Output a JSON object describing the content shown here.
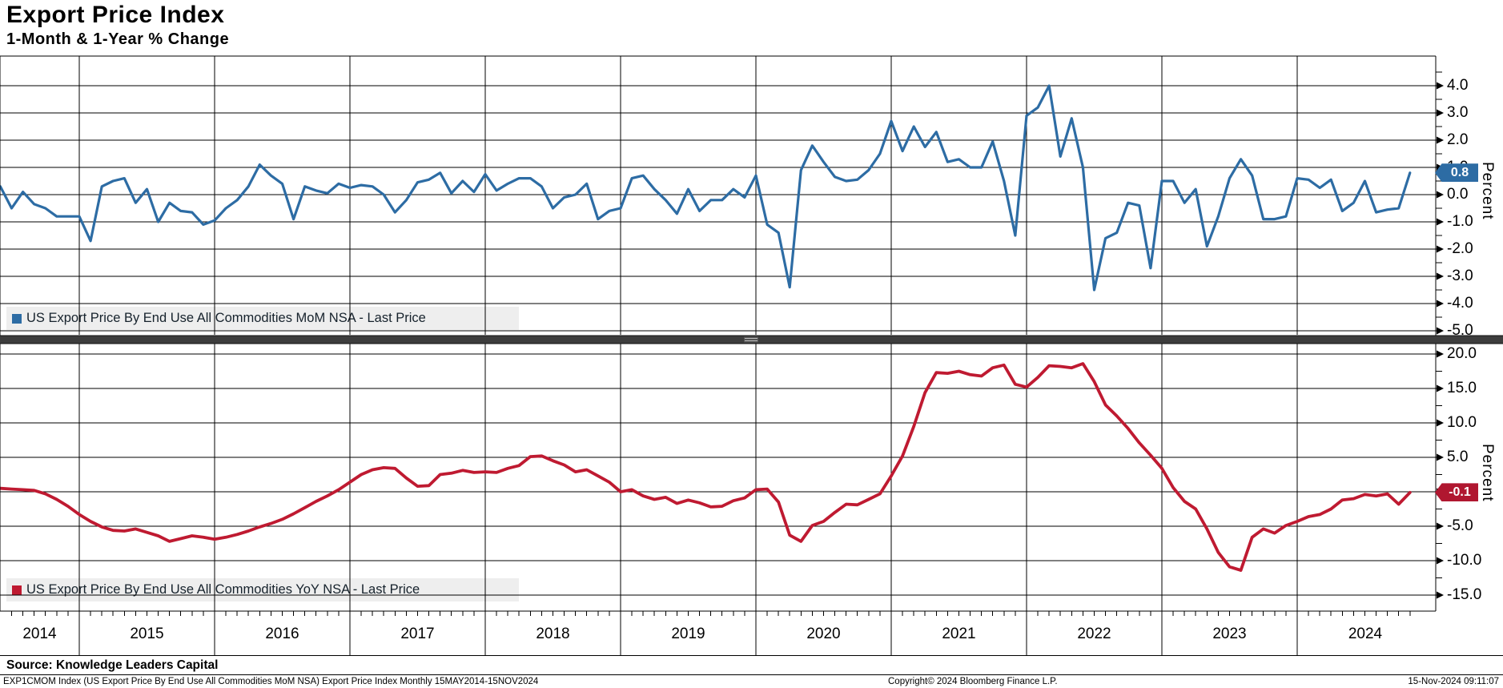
{
  "header": {
    "title": "Export Price Index",
    "subtitle": "1-Month & 1-Year % Change"
  },
  "panels": [
    {
      "id": "mom",
      "legend_label": "US Export Price By End Use All Commodities MoM NSA - Last Price",
      "line_color": "#2d6ca4",
      "badge_value": "0.8",
      "badge_color": "#2d6ca4",
      "axis_labels": [
        "4.0",
        "3.0",
        "2.0",
        "1.0",
        "0.0",
        "-1.0",
        "-2.0",
        "-3.0",
        "-4.0",
        "-5.0"
      ],
      "axis_title": "Percent"
    },
    {
      "id": "yoy",
      "legend_label": "US Export Price By End Use All Commodities YoY NSA - Last Price",
      "line_color": "#bf1a31",
      "badge_value": "-0.1",
      "badge_color": "#b01730",
      "axis_labels": [
        "20.0",
        "15.0",
        "10.0",
        "5.0",
        "0.0",
        "-5.0",
        "-10.0",
        "-15.0"
      ],
      "axis_title": "Percent"
    }
  ],
  "x_axis": {
    "year_labels": [
      "2014",
      "2015",
      "2016",
      "2017",
      "2018",
      "2019",
      "2020",
      "2021",
      "2022",
      "2023",
      "2024"
    ]
  },
  "footer": {
    "source": "Source: Knowledge Leaders Capital",
    "description": "EXP1CMOM Index (US Export Price By End Use All Commodities MoM NSA) Export Price Index  Monthly 15MAY2014-15NOV2024",
    "copyright": "Copyright© 2024 Bloomberg Finance L.P.",
    "timestamp": "15-Nov-2024 09:11:07"
  },
  "chart_data": [
    {
      "type": "line",
      "name": "US Export Price By End Use All Commodities MoM NSA - Last Price",
      "x_start": "2014-05",
      "x_end": "2024-11",
      "x_freq": "monthly",
      "ylabel": "Percent",
      "ylim": [
        -5.1,
        5.1
      ],
      "y_ticks": [
        4.0,
        3.0,
        2.0,
        1.0,
        0.0,
        -1.0,
        -2.0,
        -3.0,
        -4.0,
        -5.0
      ],
      "grid": true,
      "last_price": 0.8,
      "color": "#2d6ca4",
      "values": [
        0.2,
        0.3,
        -0.5,
        0.1,
        -0.35,
        -0.5,
        -0.8,
        -0.8,
        -0.8,
        -1.7,
        0.3,
        0.5,
        0.6,
        -0.3,
        0.2,
        -1.0,
        -0.3,
        -0.6,
        -0.65,
        -1.1,
        -0.95,
        -0.5,
        -0.2,
        0.3,
        1.1,
        0.7,
        0.4,
        -0.9,
        0.3,
        0.15,
        0.05,
        0.4,
        0.25,
        0.35,
        0.3,
        0.0,
        -0.65,
        -0.2,
        0.45,
        0.55,
        0.8,
        0.05,
        0.5,
        0.1,
        0.75,
        0.15,
        0.4,
        0.6,
        0.6,
        0.3,
        -0.5,
        -0.1,
        0.0,
        0.4,
        -0.9,
        -0.6,
        -0.5,
        0.6,
        0.7,
        0.2,
        -0.2,
        -0.7,
        0.2,
        -0.6,
        -0.2,
        -0.2,
        0.2,
        -0.1,
        0.7,
        -1.1,
        -1.4,
        -3.4,
        0.9,
        1.8,
        1.2,
        0.65,
        0.5,
        0.55,
        0.9,
        1.5,
        2.7,
        1.6,
        2.5,
        1.75,
        2.3,
        1.2,
        1.3,
        1.0,
        1.0,
        1.95,
        0.5,
        -1.5,
        2.9,
        3.2,
        4.0,
        1.4,
        2.8,
        1.0,
        -3.5,
        -1.6,
        -1.4,
        -0.3,
        -0.4,
        -2.7,
        0.5,
        0.5,
        -0.3,
        0.2,
        -1.9,
        -0.8,
        0.6,
        1.3,
        0.7,
        -0.9,
        -0.9,
        -0.8,
        0.6,
        0.55,
        0.25,
        0.55,
        -0.6,
        -0.3,
        0.5,
        -0.65,
        -0.55,
        -0.5,
        0.8
      ]
    },
    {
      "type": "line",
      "name": "US Export Price By End Use All Commodities YoY NSA - Last Price",
      "x_start": "2014-05",
      "x_end": "2024-11",
      "x_freq": "monthly",
      "ylabel": "Percent",
      "ylim": [
        -17.4,
        21.5
      ],
      "y_ticks": [
        20.0,
        15.0,
        10.0,
        5.0,
        0.0,
        -5.0,
        -10.0,
        -15.0
      ],
      "grid": true,
      "last_price": -0.1,
      "color": "#bf1a31",
      "values": [
        0.4,
        0.5,
        0.4,
        0.3,
        0.2,
        -0.3,
        -1.1,
        -2.1,
        -3.3,
        -4.3,
        -5.1,
        -5.6,
        -5.7,
        -5.4,
        -5.9,
        -6.4,
        -7.2,
        -6.8,
        -6.4,
        -6.6,
        -6.9,
        -6.6,
        -6.2,
        -5.7,
        -5.1,
        -4.6,
        -4.0,
        -3.2,
        -2.3,
        -1.4,
        -0.6,
        0.3,
        1.4,
        2.5,
        3.2,
        3.5,
        3.4,
        2.0,
        0.8,
        0.9,
        2.5,
        2.7,
        3.1,
        2.8,
        2.9,
        2.8,
        3.4,
        3.8,
        5.1,
        5.2,
        4.5,
        3.9,
        2.9,
        3.2,
        2.3,
        1.4,
        0.0,
        0.3,
        -0.6,
        -1.1,
        -0.8,
        -1.7,
        -1.2,
        -1.6,
        -2.2,
        -2.1,
        -1.3,
        -0.9,
        0.3,
        0.4,
        -1.5,
        -6.3,
        -7.2,
        -4.9,
        -4.3,
        -3.0,
        -1.8,
        -1.9,
        -1.1,
        -0.3,
        2.3,
        5.2,
        9.5,
        14.4,
        17.3,
        17.2,
        17.5,
        17.0,
        16.8,
        18.0,
        18.4,
        15.6,
        15.2,
        16.6,
        18.3,
        18.2,
        18.0,
        18.6,
        16.0,
        12.6,
        11.0,
        9.2,
        7.1,
        5.3,
        3.4,
        0.6,
        -1.4,
        -2.5,
        -5.4,
        -8.8,
        -10.9,
        -11.4,
        -6.6,
        -5.4,
        -6.0,
        -4.9,
        -4.3,
        -3.6,
        -3.3,
        -2.5,
        -1.2,
        -1.0,
        -0.4,
        -0.6,
        -0.3,
        -1.8,
        -0.1
      ]
    }
  ]
}
